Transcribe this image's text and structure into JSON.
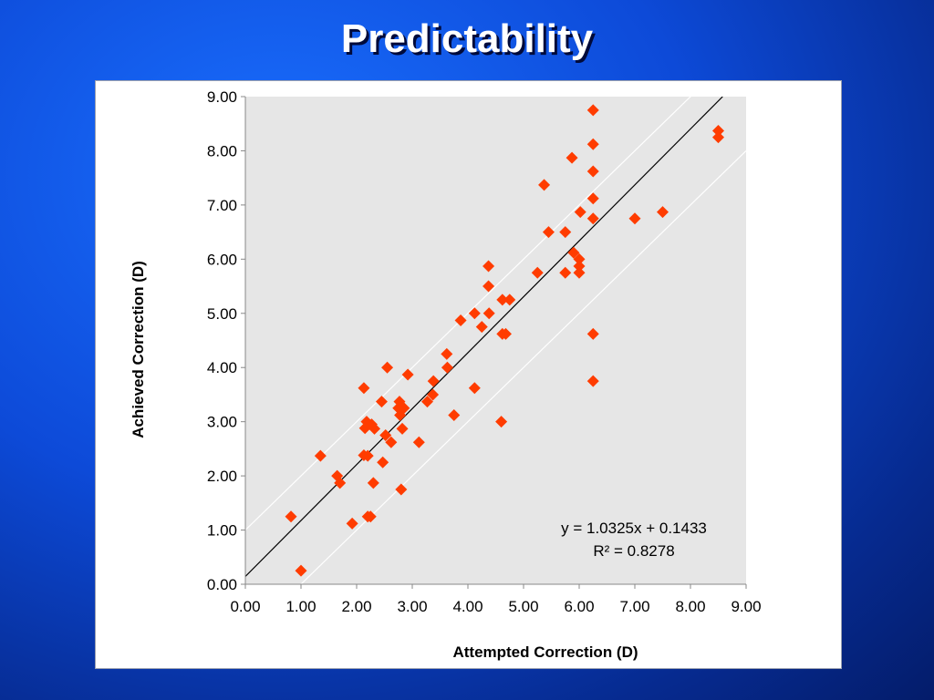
{
  "slide": {
    "title": "Predictability"
  },
  "colors": {
    "background": "#0d4ad8",
    "plot_area": "#e6e6e6",
    "marker": "#ff3c00",
    "trendline": "#000000",
    "band_lines": "#ffffff"
  },
  "chart_data": {
    "type": "scatter",
    "xlabel": "Attempted Correction (D)",
    "ylabel": "Achieved Correction (D)",
    "xlim": [
      0,
      9
    ],
    "ylim": [
      0,
      9
    ],
    "xticks": [
      "0.00",
      "1.00",
      "2.00",
      "3.00",
      "4.00",
      "5.00",
      "6.00",
      "7.00",
      "8.00",
      "9.00"
    ],
    "yticks": [
      "0.00",
      "1.00",
      "2.00",
      "3.00",
      "4.00",
      "5.00",
      "6.00",
      "7.00",
      "8.00",
      "9.00"
    ],
    "grid": false,
    "marker_shape": "diamond",
    "trendline": {
      "slope": 1.0325,
      "intercept": 0.1433
    },
    "bands": [
      {
        "offset": 1.0
      },
      {
        "offset": -1.0
      }
    ],
    "equation": "y = 1.0325x + 0.1433",
    "r_squared": "R² = 0.8278",
    "points": [
      [
        0.82,
        1.25
      ],
      [
        1.0,
        0.25
      ],
      [
        1.35,
        2.37
      ],
      [
        1.65,
        2.0
      ],
      [
        1.7,
        1.87
      ],
      [
        1.92,
        1.12
      ],
      [
        2.13,
        2.38
      ],
      [
        2.13,
        3.62
      ],
      [
        2.15,
        2.88
      ],
      [
        2.18,
        3.0
      ],
      [
        2.2,
        2.37
      ],
      [
        2.2,
        1.25
      ],
      [
        2.25,
        1.25
      ],
      [
        2.27,
        2.95
      ],
      [
        2.3,
        1.87
      ],
      [
        2.32,
        2.87
      ],
      [
        2.45,
        3.37
      ],
      [
        2.47,
        2.25
      ],
      [
        2.52,
        2.75
      ],
      [
        2.55,
        4.0
      ],
      [
        2.62,
        2.62
      ],
      [
        2.75,
        3.25
      ],
      [
        2.77,
        3.37
      ],
      [
        2.78,
        3.12
      ],
      [
        2.8,
        1.75
      ],
      [
        2.82,
        2.87
      ],
      [
        2.85,
        3.25
      ],
      [
        2.92,
        3.87
      ],
      [
        3.12,
        2.62
      ],
      [
        3.27,
        3.37
      ],
      [
        3.37,
        3.5
      ],
      [
        3.38,
        3.75
      ],
      [
        3.62,
        4.25
      ],
      [
        3.63,
        4.0
      ],
      [
        3.75,
        3.12
      ],
      [
        3.87,
        4.87
      ],
      [
        4.12,
        5.0
      ],
      [
        4.12,
        3.62
      ],
      [
        4.25,
        4.75
      ],
      [
        4.37,
        5.87
      ],
      [
        4.37,
        5.5
      ],
      [
        4.38,
        5.0
      ],
      [
        4.6,
        3.0
      ],
      [
        4.62,
        5.25
      ],
      [
        4.62,
        4.62
      ],
      [
        4.68,
        4.62
      ],
      [
        4.75,
        5.25
      ],
      [
        5.25,
        5.75
      ],
      [
        5.37,
        7.37
      ],
      [
        5.45,
        6.5
      ],
      [
        5.75,
        5.75
      ],
      [
        5.75,
        6.5
      ],
      [
        5.87,
        7.87
      ],
      [
        5.9,
        6.12
      ],
      [
        6.0,
        6.0
      ],
      [
        6.0,
        5.87
      ],
      [
        6.0,
        5.75
      ],
      [
        6.02,
        6.87
      ],
      [
        6.25,
        8.75
      ],
      [
        6.25,
        8.12
      ],
      [
        6.25,
        7.62
      ],
      [
        6.25,
        7.12
      ],
      [
        6.25,
        6.75
      ],
      [
        6.25,
        4.62
      ],
      [
        6.25,
        3.75
      ],
      [
        7.0,
        6.75
      ],
      [
        7.5,
        6.87
      ],
      [
        8.5,
        8.37
      ],
      [
        8.5,
        8.25
      ]
    ]
  }
}
